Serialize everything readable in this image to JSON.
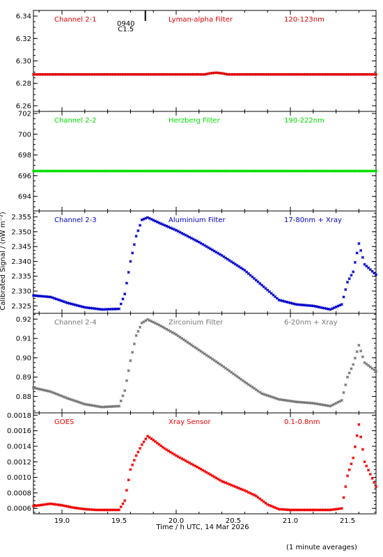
{
  "figure": {
    "ylabel": "Calibrated Signal / (nW m⁻²)",
    "xlabel": "Time / h UTC, 14 Mar 2026",
    "footer": "(1 minute averages)",
    "flare_marker": {
      "x": 19.73,
      "line1": "0940",
      "line2": "C1.5"
    }
  },
  "chart_data": [
    {
      "type": "scatter",
      "channel": "Channel 2-1",
      "filter": "Lyman-alpha Filter",
      "band": "120-123nm",
      "color": "#dd0000",
      "xlim": [
        18.75,
        21.75
      ],
      "ylim": [
        6.255,
        6.345
      ],
      "yticks": [
        "6.26",
        "6.28",
        "6.30",
        "6.32",
        "6.34"
      ],
      "x": [
        18.75,
        19.0,
        19.25,
        19.5,
        19.75,
        20.0,
        20.25,
        20.3,
        20.35,
        20.4,
        20.45,
        20.5,
        20.75,
        21.0,
        21.25,
        21.5,
        21.75
      ],
      "y": [
        6.288,
        6.288,
        6.288,
        6.288,
        6.288,
        6.288,
        6.288,
        6.289,
        6.2895,
        6.289,
        6.288,
        6.288,
        6.288,
        6.288,
        6.288,
        6.288,
        6.288
      ]
    },
    {
      "type": "scatter",
      "channel": "Channel 2-2",
      "filter": "Herzberg Filter",
      "band": "190-222nm",
      "color": "#00dd00",
      "xlim": [
        18.75,
        21.75
      ],
      "ylim": [
        692.6,
        702.2
      ],
      "yticks": [
        "694",
        "696",
        "698",
        "700",
        "702"
      ],
      "x": [
        18.75,
        19.0,
        19.25,
        19.5,
        19.75,
        20.0,
        20.25,
        20.5,
        20.75,
        21.0,
        21.25,
        21.5,
        21.75
      ],
      "y": [
        696.45,
        696.45,
        696.45,
        696.45,
        696.45,
        696.45,
        696.45,
        696.45,
        696.45,
        696.45,
        696.45,
        696.45,
        696.45
      ]
    },
    {
      "type": "scatter",
      "channel": "Channel 2-3",
      "filter": "Aluminium Filter",
      "band": "17-80nm + Xray",
      "color": "#0000cc",
      "xlim": [
        18.75,
        21.75
      ],
      "ylim": [
        2.3225,
        2.357
      ],
      "yticks": [
        "2.325",
        "2.330",
        "2.335",
        "2.340",
        "2.345",
        "2.350",
        "2.355"
      ],
      "x": [
        18.75,
        18.9,
        19.05,
        19.2,
        19.35,
        19.5,
        19.55,
        19.6,
        19.65,
        19.7,
        19.75,
        19.85,
        20.0,
        20.2,
        20.4,
        20.6,
        20.75,
        20.9,
        21.05,
        21.2,
        21.35,
        21.45,
        21.5,
        21.55,
        21.6,
        21.65,
        21.75
      ],
      "y": [
        2.3285,
        2.328,
        2.326,
        2.3245,
        2.3238,
        2.324,
        2.329,
        2.34,
        2.3485,
        2.354,
        2.3548,
        2.353,
        2.3505,
        2.3465,
        2.342,
        2.337,
        2.332,
        2.327,
        2.3255,
        2.325,
        2.3238,
        2.3255,
        2.333,
        2.3365,
        2.346,
        2.339,
        2.3355
      ]
    },
    {
      "type": "scatter",
      "channel": "Channel 2-4",
      "filter": "Zirconium Filter",
      "band": "6-20nm + Xray",
      "color": "#777777",
      "xlim": [
        18.75,
        21.75
      ],
      "ylim": [
        0.8715,
        0.923
      ],
      "yticks": [
        "0.88",
        "0.89",
        "0.90",
        "0.91",
        "0.92"
      ],
      "x": [
        18.75,
        18.9,
        19.05,
        19.2,
        19.35,
        19.5,
        19.55,
        19.6,
        19.65,
        19.7,
        19.75,
        19.85,
        20.0,
        20.2,
        20.4,
        20.6,
        20.75,
        20.9,
        21.05,
        21.2,
        21.35,
        21.45,
        21.5,
        21.55,
        21.6,
        21.65,
        21.75
      ],
      "y": [
        0.8845,
        0.8825,
        0.879,
        0.876,
        0.8745,
        0.875,
        0.883,
        0.8985,
        0.9115,
        0.918,
        0.9198,
        0.917,
        0.912,
        0.904,
        0.896,
        0.8875,
        0.8815,
        0.8785,
        0.8772,
        0.8765,
        0.875,
        0.878,
        0.89,
        0.8965,
        0.9065,
        0.8975,
        0.893
      ]
    },
    {
      "type": "scatter",
      "channel": "GOES",
      "filter": "Xray Sensor",
      "band": "0.1-0.8nm",
      "color": "#ee0000",
      "xlim": [
        18.75,
        21.75
      ],
      "ylim": [
        0.00053,
        0.00183
      ],
      "yticks": [
        "0.0006",
        "0.0008",
        "0.0010",
        "0.0012",
        "0.0014",
        "0.0016",
        "0.0018"
      ],
      "xticks": [
        "19.0",
        "19.5",
        "20.0",
        "20.5",
        "21.0",
        "21.5"
      ],
      "x": [
        18.75,
        18.9,
        19.0,
        19.1,
        19.2,
        19.3,
        19.4,
        19.5,
        19.55,
        19.6,
        19.65,
        19.7,
        19.75,
        19.8,
        19.9,
        20.0,
        20.2,
        20.4,
        20.6,
        20.7,
        20.8,
        20.9,
        21.0,
        21.2,
        21.35,
        21.45,
        21.5,
        21.55,
        21.6,
        21.65,
        21.75
      ],
      "y": [
        0.00063,
        0.00066,
        0.00064,
        0.00061,
        0.00059,
        0.00058,
        0.00058,
        0.00058,
        0.0007,
        0.0011,
        0.00128,
        0.00142,
        0.00153,
        0.00148,
        0.00137,
        0.00128,
        0.00112,
        0.00095,
        0.00083,
        0.00076,
        0.00065,
        0.00059,
        0.00058,
        0.00058,
        0.00058,
        0.0006,
        0.00102,
        0.00125,
        0.00168,
        0.0012,
        0.00088
      ]
    }
  ]
}
